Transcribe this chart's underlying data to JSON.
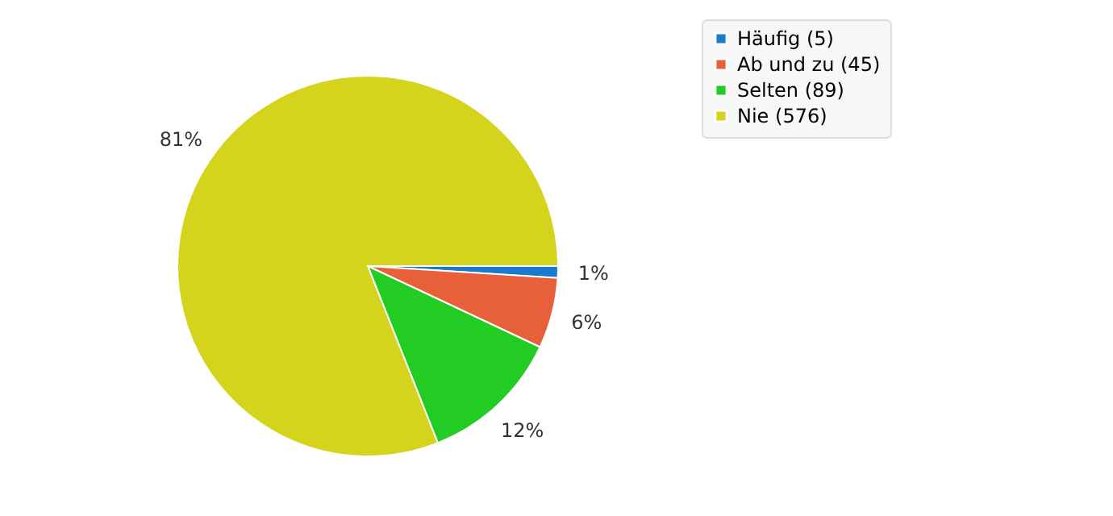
{
  "chart_data": {
    "type": "pie",
    "categories": [
      "Häufig (5)",
      "Ab und zu (45)",
      "Selten (89)",
      "Nie (576)"
    ],
    "values": [
      1,
      6,
      12,
      81
    ],
    "value_labels": [
      "1%",
      "6%",
      "12%",
      "81%"
    ],
    "colors": [
      "#1a7ad0",
      "#e8603a",
      "#22cc22",
      "#d4d41c"
    ],
    "legend": "top right"
  }
}
